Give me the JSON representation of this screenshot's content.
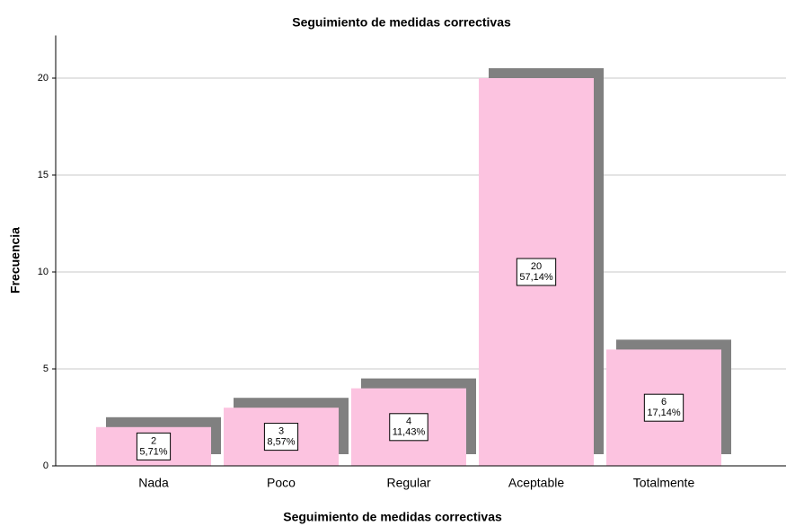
{
  "chart_data": {
    "type": "bar",
    "title": "Seguimiento de medidas correctivas",
    "x_label": "Seguimiento de medidas correctivas",
    "y_label": "Frecuencia",
    "categories": [
      "Nada",
      "Poco",
      "Regular",
      "Aceptable",
      "Totalmente"
    ],
    "values": [
      2,
      3,
      4,
      20,
      6
    ],
    "percent_labels": [
      "5,71%",
      "8,57%",
      "11,43%",
      "57,14%",
      "17,14%"
    ],
    "color": "#fcc3e0",
    "shadow_color": "#808080",
    "ylim": [
      0,
      22.2
    ],
    "yticks": [
      0,
      5,
      10,
      15,
      20
    ],
    "grid": true
  }
}
